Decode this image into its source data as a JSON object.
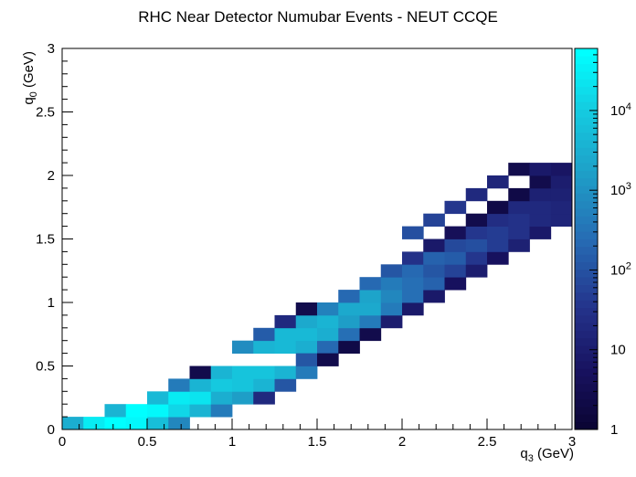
{
  "chart_data": {
    "type": "heatmap",
    "title": "RHC Near Detector Numubar Events - NEUT CCQE",
    "xlabel": {
      "main": "q",
      "sub": "3",
      "unit": " (GeV)"
    },
    "ylabel": {
      "main": "q",
      "sub": "0",
      "unit": " (GeV)"
    },
    "xlim": [
      0,
      3
    ],
    "ylim": [
      0,
      3
    ],
    "x_bin_width": 0.125,
    "y_bin_width": 0.1,
    "x_ticks": [
      "0",
      "0.5",
      "1",
      "1.5",
      "2",
      "2.5",
      "3"
    ],
    "y_ticks": [
      "0",
      "0.5",
      "1",
      "1.5",
      "2",
      "2.5",
      "3"
    ],
    "colorbar": {
      "scale": "log",
      "range": [
        1,
        60000
      ],
      "tick_labels": [
        {
          "base": "1",
          "exp": "",
          "value": 1
        },
        {
          "base": "10",
          "exp": "",
          "value": 10
        },
        {
          "base": "10",
          "exp": "2",
          "value": 100
        },
        {
          "base": "10",
          "exp": "3",
          "value": 1000
        },
        {
          "base": "10",
          "exp": "4",
          "value": 10000
        }
      ]
    },
    "grid": false,
    "legend": "none",
    "cells": [
      {
        "x": 0.0625,
        "y": 0.05,
        "v": 3000
      },
      {
        "x": 0.1875,
        "y": 0.05,
        "v": 25000
      },
      {
        "x": 0.3125,
        "y": 0.05,
        "v": 50000
      },
      {
        "x": 0.4375,
        "y": 0.05,
        "v": 45000
      },
      {
        "x": 0.5625,
        "y": 0.05,
        "v": 6000
      },
      {
        "x": 0.6875,
        "y": 0.05,
        "v": 600
      },
      {
        "x": 0.3125,
        "y": 0.15,
        "v": 4000
      },
      {
        "x": 0.4375,
        "y": 0.15,
        "v": 50000
      },
      {
        "x": 0.5625,
        "y": 0.15,
        "v": 45000
      },
      {
        "x": 0.6875,
        "y": 0.15,
        "v": 15000
      },
      {
        "x": 0.8125,
        "y": 0.15,
        "v": 4000
      },
      {
        "x": 0.9375,
        "y": 0.15,
        "v": 400
      },
      {
        "x": 0.5625,
        "y": 0.25,
        "v": 5000
      },
      {
        "x": 0.6875,
        "y": 0.25,
        "v": 30000
      },
      {
        "x": 0.8125,
        "y": 0.25,
        "v": 20000
      },
      {
        "x": 0.9375,
        "y": 0.25,
        "v": 3000
      },
      {
        "x": 1.0625,
        "y": 0.25,
        "v": 1500
      },
      {
        "x": 1.1875,
        "y": 0.25,
        "v": 20
      },
      {
        "x": 0.6875,
        "y": 0.35,
        "v": 400
      },
      {
        "x": 0.8125,
        "y": 0.35,
        "v": 4000
      },
      {
        "x": 0.9375,
        "y": 0.35,
        "v": 10000
      },
      {
        "x": 1.0625,
        "y": 0.35,
        "v": 8000
      },
      {
        "x": 1.1875,
        "y": 0.35,
        "v": 3500
      },
      {
        "x": 1.3125,
        "y": 0.35,
        "v": 120
      },
      {
        "x": 0.8125,
        "y": 0.45,
        "v": 3
      },
      {
        "x": 0.9375,
        "y": 0.45,
        "v": 3500
      },
      {
        "x": 1.0625,
        "y": 0.45,
        "v": 7000
      },
      {
        "x": 1.1875,
        "y": 0.45,
        "v": 8000
      },
      {
        "x": 1.3125,
        "y": 0.45,
        "v": 4000
      },
      {
        "x": 1.4375,
        "y": 0.45,
        "v": 400
      },
      {
        "x": 1.0625,
        "y": 0.65,
        "v": 800
      },
      {
        "x": 1.1875,
        "y": 0.65,
        "v": 4000
      },
      {
        "x": 1.3125,
        "y": 0.65,
        "v": 5000
      },
      {
        "x": 1.4375,
        "y": 0.65,
        "v": 3000
      },
      {
        "x": 1.5625,
        "y": 0.65,
        "v": 200
      },
      {
        "x": 1.6875,
        "y": 0.65,
        "v": 2
      },
      {
        "x": 1.4375,
        "y": 0.55,
        "v": 120
      },
      {
        "x": 1.5625,
        "y": 0.55,
        "v": 3
      },
      {
        "x": 1.1875,
        "y": 0.75,
        "v": 150
      },
      {
        "x": 1.3125,
        "y": 0.75,
        "v": 4500
      },
      {
        "x": 1.4375,
        "y": 0.75,
        "v": 5000
      },
      {
        "x": 1.5625,
        "y": 0.75,
        "v": 3000
      },
      {
        "x": 1.6875,
        "y": 0.75,
        "v": 300
      },
      {
        "x": 1.8125,
        "y": 0.75,
        "v": 3
      },
      {
        "x": 1.3125,
        "y": 0.85,
        "v": 20
      },
      {
        "x": 1.4375,
        "y": 0.85,
        "v": 2500
      },
      {
        "x": 1.5625,
        "y": 0.85,
        "v": 3500
      },
      {
        "x": 1.6875,
        "y": 0.85,
        "v": 1500
      },
      {
        "x": 1.8125,
        "y": 0.85,
        "v": 400
      },
      {
        "x": 1.9375,
        "y": 0.85,
        "v": 10
      },
      {
        "x": 1.4375,
        "y": 0.95,
        "v": 3
      },
      {
        "x": 1.5625,
        "y": 0.95,
        "v": 500
      },
      {
        "x": 1.6875,
        "y": 0.95,
        "v": 2500
      },
      {
        "x": 1.8125,
        "y": 0.95,
        "v": 2500
      },
      {
        "x": 1.9375,
        "y": 0.95,
        "v": 400
      },
      {
        "x": 2.0625,
        "y": 0.95,
        "v": 8
      },
      {
        "x": 1.6875,
        "y": 1.05,
        "v": 200
      },
      {
        "x": 1.8125,
        "y": 1.05,
        "v": 2000
      },
      {
        "x": 1.9375,
        "y": 1.05,
        "v": 600
      },
      {
        "x": 2.0625,
        "y": 1.05,
        "v": 300
      },
      {
        "x": 2.1875,
        "y": 1.05,
        "v": 8
      },
      {
        "x": 1.8125,
        "y": 1.15,
        "v": 200
      },
      {
        "x": 1.9375,
        "y": 1.15,
        "v": 400
      },
      {
        "x": 2.0625,
        "y": 1.15,
        "v": 250
      },
      {
        "x": 2.1875,
        "y": 1.15,
        "v": 180
      },
      {
        "x": 2.3125,
        "y": 1.15,
        "v": 5
      },
      {
        "x": 1.9375,
        "y": 1.25,
        "v": 120
      },
      {
        "x": 2.0625,
        "y": 1.25,
        "v": 200
      },
      {
        "x": 2.1875,
        "y": 1.25,
        "v": 120
      },
      {
        "x": 2.3125,
        "y": 1.25,
        "v": 60
      },
      {
        "x": 2.4375,
        "y": 1.25,
        "v": 10
      },
      {
        "x": 2.0625,
        "y": 1.35,
        "v": 30
      },
      {
        "x": 2.1875,
        "y": 1.35,
        "v": 160
      },
      {
        "x": 2.3125,
        "y": 1.35,
        "v": 130
      },
      {
        "x": 2.4375,
        "y": 1.35,
        "v": 40
      },
      {
        "x": 2.5625,
        "y": 1.35,
        "v": 5
      },
      {
        "x": 2.1875,
        "y": 1.45,
        "v": 8
      },
      {
        "x": 2.3125,
        "y": 1.45,
        "v": 80
      },
      {
        "x": 2.4375,
        "y": 1.45,
        "v": 90
      },
      {
        "x": 2.5625,
        "y": 1.45,
        "v": 50
      },
      {
        "x": 2.6875,
        "y": 1.45,
        "v": 12
      },
      {
        "x": 2.3125,
        "y": 1.55,
        "v": 4
      },
      {
        "x": 2.4375,
        "y": 1.55,
        "v": 40
      },
      {
        "x": 2.5625,
        "y": 1.55,
        "v": 50
      },
      {
        "x": 2.6875,
        "y": 1.55,
        "v": 30
      },
      {
        "x": 2.8125,
        "y": 1.55,
        "v": 8
      },
      {
        "x": 2.4375,
        "y": 1.65,
        "v": 3
      },
      {
        "x": 2.5625,
        "y": 1.65,
        "v": 25
      },
      {
        "x": 2.6875,
        "y": 1.65,
        "v": 30
      },
      {
        "x": 2.8125,
        "y": 1.65,
        "v": 20
      },
      {
        "x": 2.9375,
        "y": 1.65,
        "v": 15
      },
      {
        "x": 2.5625,
        "y": 1.75,
        "v": 2
      },
      {
        "x": 2.6875,
        "y": 1.75,
        "v": 18
      },
      {
        "x": 2.8125,
        "y": 1.75,
        "v": 20
      },
      {
        "x": 2.9375,
        "y": 1.75,
        "v": 15
      },
      {
        "x": 2.6875,
        "y": 1.85,
        "v": 2
      },
      {
        "x": 2.8125,
        "y": 1.85,
        "v": 12
      },
      {
        "x": 2.9375,
        "y": 1.85,
        "v": 14
      },
      {
        "x": 2.8125,
        "y": 1.95,
        "v": 3
      },
      {
        "x": 2.9375,
        "y": 1.95,
        "v": 10
      },
      {
        "x": 2.9375,
        "y": 2.05,
        "v": 6
      },
      {
        "x": 2.6875,
        "y": 2.05,
        "v": 3
      },
      {
        "x": 2.8125,
        "y": 2.05,
        "v": 8
      },
      {
        "x": 2.5625,
        "y": 1.95,
        "v": 15
      },
      {
        "x": 2.4375,
        "y": 1.85,
        "v": 20
      },
      {
        "x": 2.3125,
        "y": 1.75,
        "v": 35
      },
      {
        "x": 2.1875,
        "y": 1.65,
        "v": 60
      },
      {
        "x": 2.0625,
        "y": 1.55,
        "v": 90
      }
    ]
  }
}
